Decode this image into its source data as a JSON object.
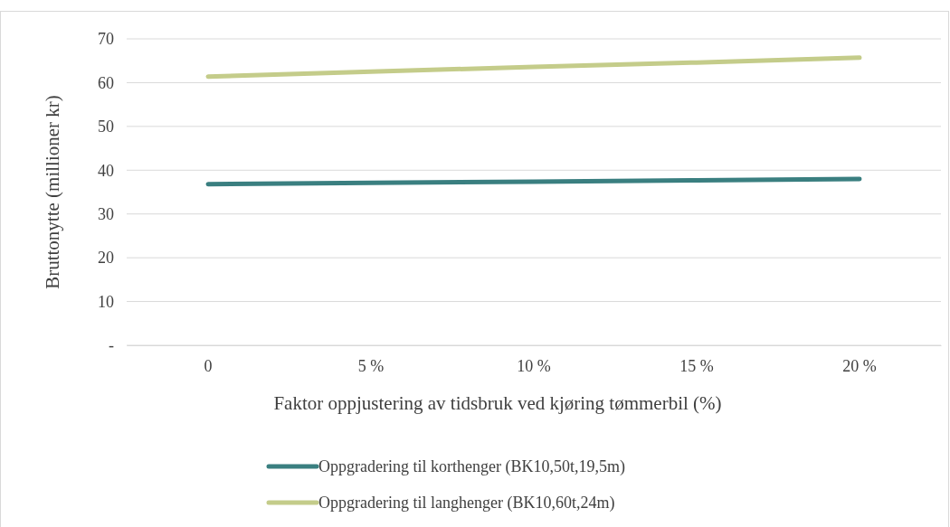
{
  "chart_data": {
    "type": "line",
    "xlabel": "Faktor oppjustering av tidsbruk ved kjøring tømmerbil (%)",
    "ylabel": "Bruttonytte (millioner kr)",
    "categories": [
      "0",
      "5 %",
      "10 %",
      "15 %",
      "20 %"
    ],
    "series": [
      {
        "name": "Oppgradering til korthenger (BK10,50t,19,5m)",
        "color": "#3a7f80",
        "values": [
          36.8,
          37.1,
          37.4,
          37.7,
          38.0
        ]
      },
      {
        "name": "Oppgradering til langhenger (BK10,60t,24m)",
        "color": "#c4cc8a",
        "values": [
          61.4,
          62.5,
          63.6,
          64.6,
          65.7
        ]
      }
    ],
    "ylim": [
      0,
      70
    ],
    "yticks": [
      {
        "value": 0,
        "label": "-"
      },
      10,
      20,
      30,
      40,
      50,
      60,
      70
    ],
    "grid": "y",
    "legend": "bottom",
    "marker": "none",
    "line_style": "solid"
  }
}
